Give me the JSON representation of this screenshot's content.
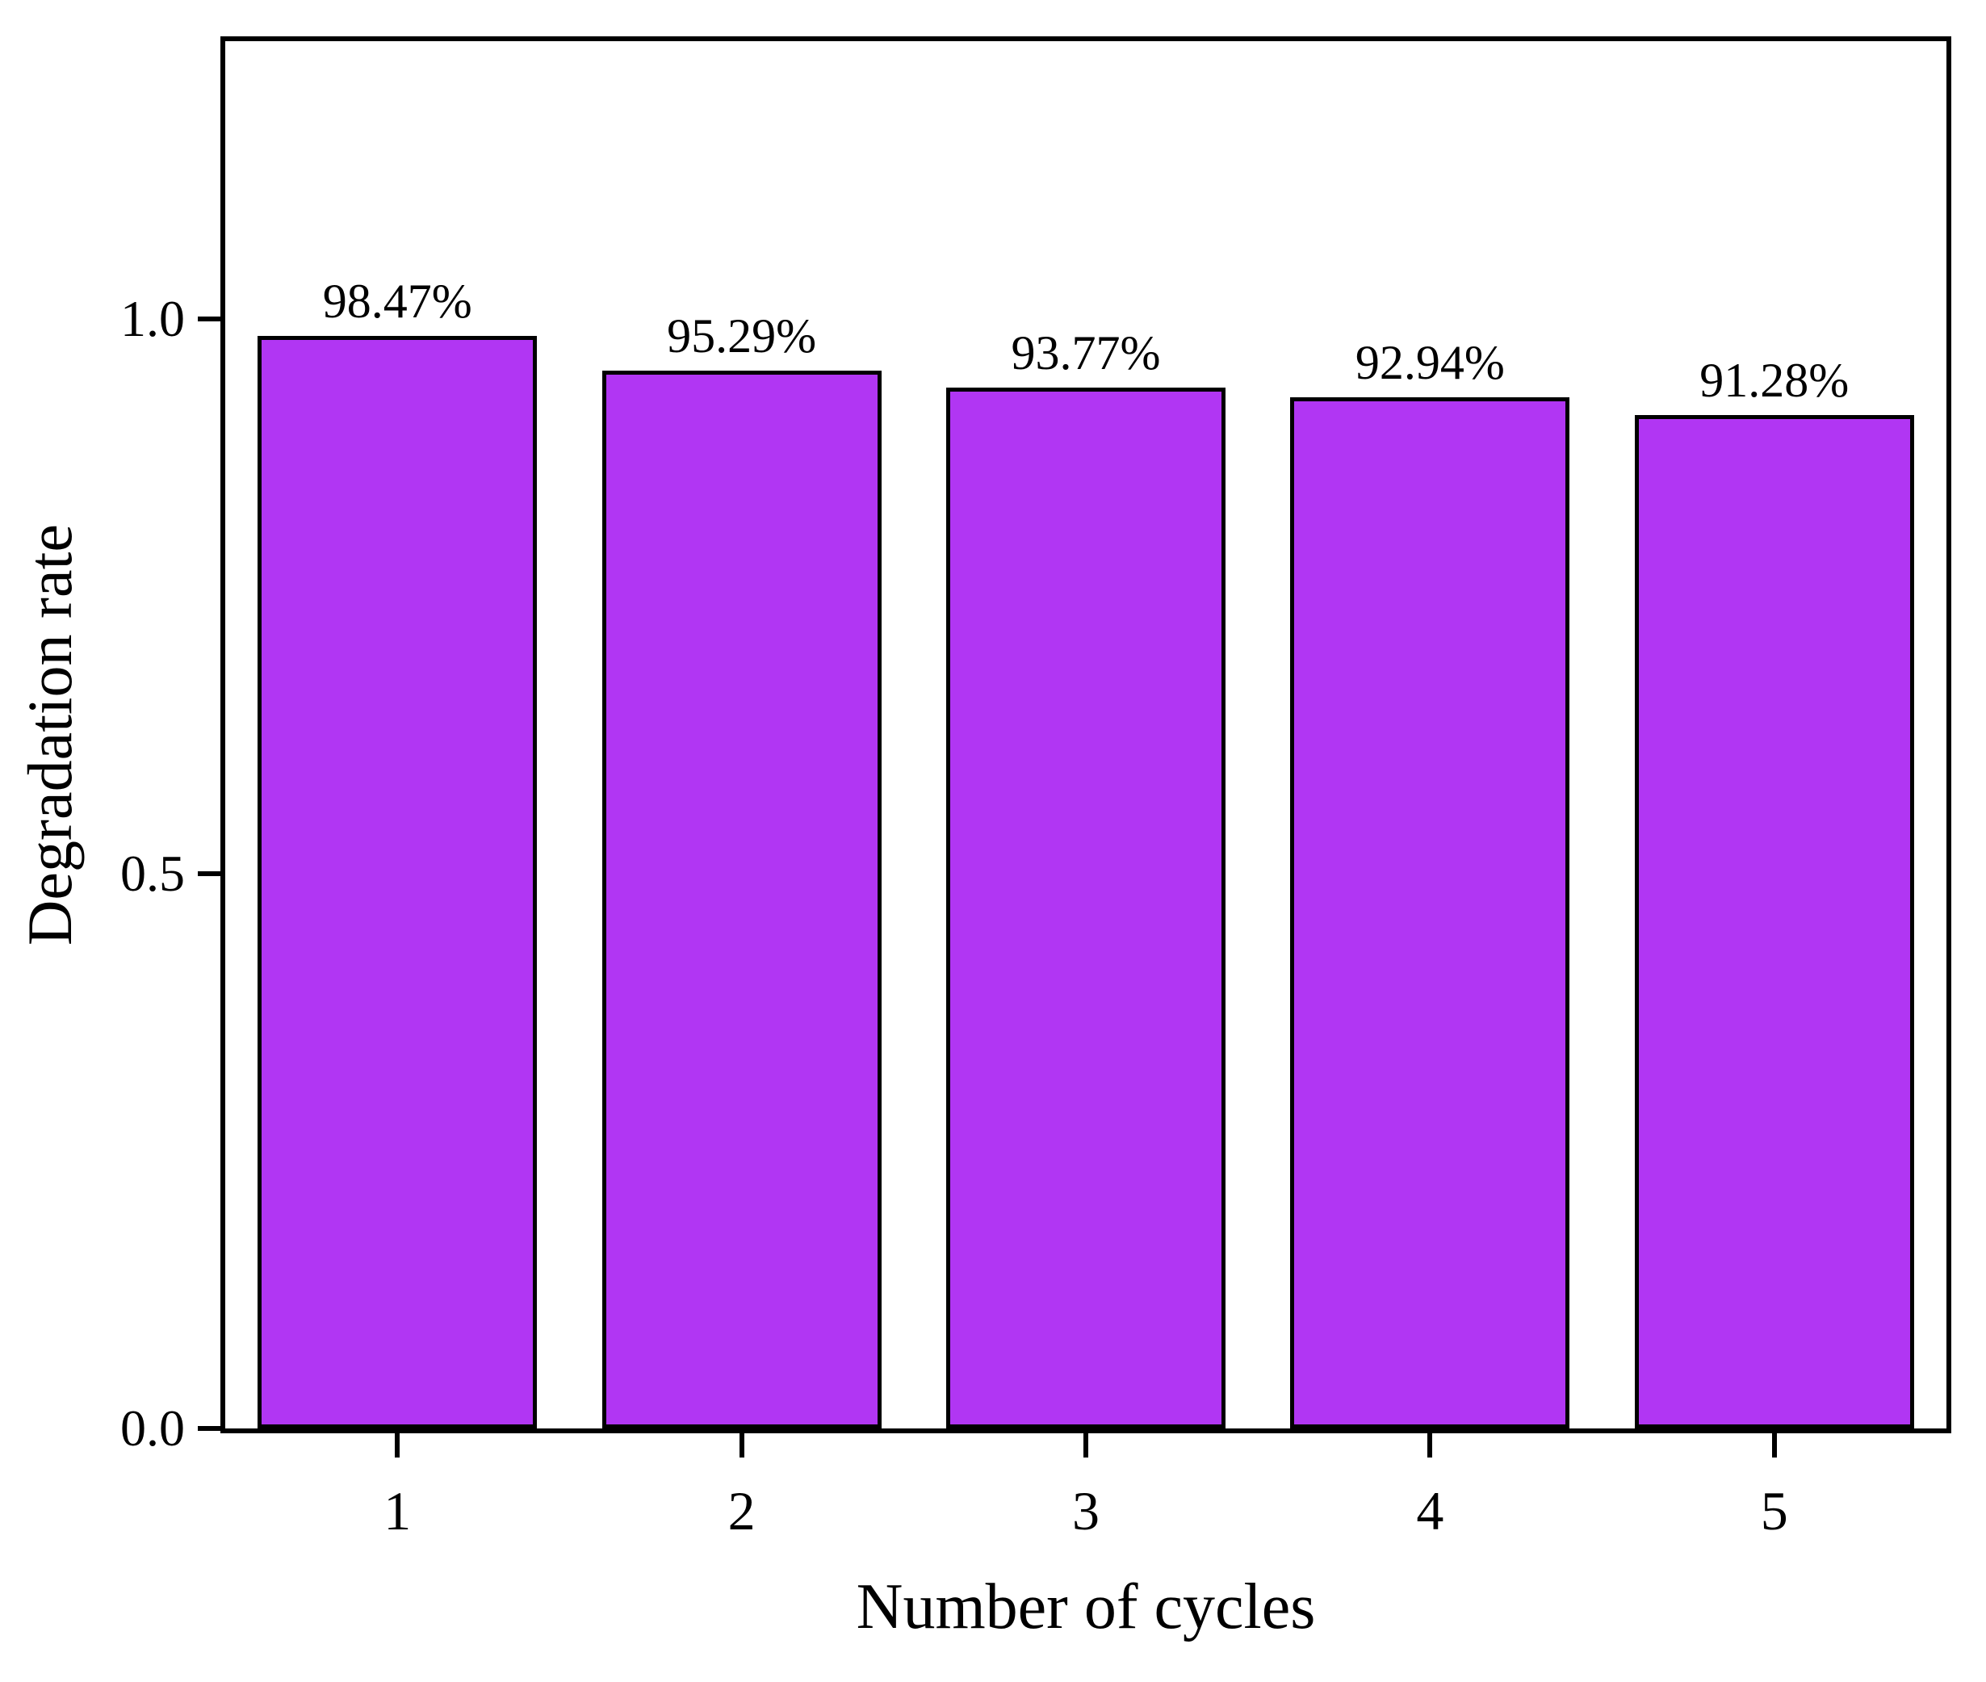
{
  "chart_data": {
    "type": "bar",
    "title": "",
    "xlabel": "Number of cycles",
    "ylabel": "Degradation rate",
    "categories": [
      "1",
      "2",
      "3",
      "4",
      "5"
    ],
    "values": [
      0.9847,
      0.9529,
      0.9377,
      0.9294,
      0.9128
    ],
    "bar_labels": [
      "98.47%",
      "95.29%",
      "93.77%",
      "92.94%",
      "91.28%"
    ],
    "yticks": [
      {
        "value": 0.0,
        "label": "0.0"
      },
      {
        "value": 0.5,
        "label": "0.5"
      },
      {
        "value": 1.0,
        "label": "1.0"
      }
    ],
    "ylim": [
      0,
      1.25
    ],
    "grid": false,
    "legend": "none",
    "tick_direction": "out",
    "colors": {
      "bar_fill": "#B136F3",
      "bar_edge": "#000000",
      "frame": "#000000",
      "text": "#000000",
      "background": "#ffffff"
    }
  }
}
